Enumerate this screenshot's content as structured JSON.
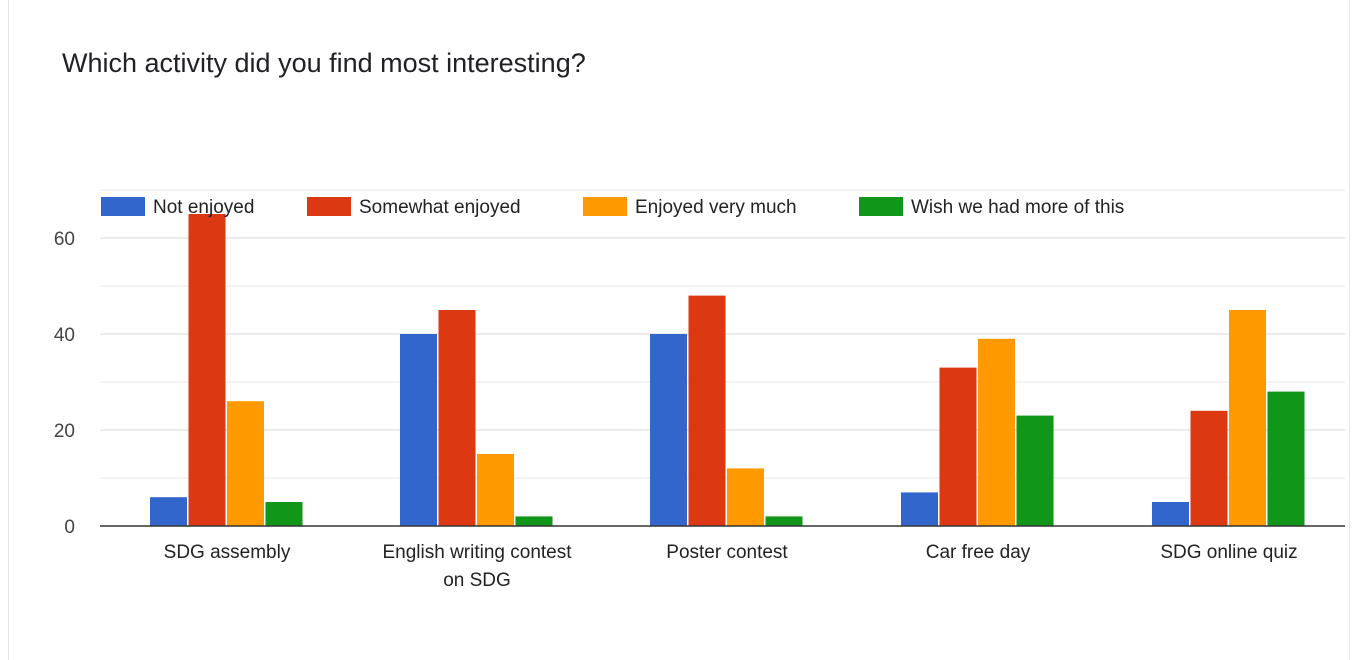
{
  "question": {
    "title": "Which activity did you find most interesting?"
  },
  "colors": {
    "not_enjoyed": "#3366cc",
    "somewhat_enjoyed": "#dc3912",
    "enjoyed_very_much": "#ff9900",
    "wish_more": "#109618",
    "gridline": "#e0e0e0",
    "baseline": "#333333",
    "axis_text": "#444444"
  },
  "chart_data": {
    "type": "bar",
    "title": "Which activity did you find most interesting?",
    "categories": [
      [
        "SDG assembly"
      ],
      [
        "English writing contest",
        "on SDG"
      ],
      [
        "Poster contest"
      ],
      [
        "Car free day"
      ],
      [
        "SDG online quiz"
      ]
    ],
    "series": [
      {
        "name": "Not enjoyed",
        "color": "#3366cc",
        "values": [
          6,
          40,
          40,
          7,
          5
        ]
      },
      {
        "name": "Somewhat enjoyed",
        "color": "#dc3912",
        "values": [
          65,
          45,
          48,
          33,
          24
        ]
      },
      {
        "name": "Enjoyed very much",
        "color": "#ff9900",
        "values": [
          26,
          15,
          12,
          39,
          45
        ]
      },
      {
        "name": "Wish we had more of this",
        "color": "#109618",
        "values": [
          5,
          2,
          2,
          23,
          28
        ]
      }
    ],
    "y_ticks": [
      0,
      20,
      40,
      60
    ],
    "ylim": [
      0,
      70
    ],
    "grid": true,
    "legend_position": "top-left"
  }
}
